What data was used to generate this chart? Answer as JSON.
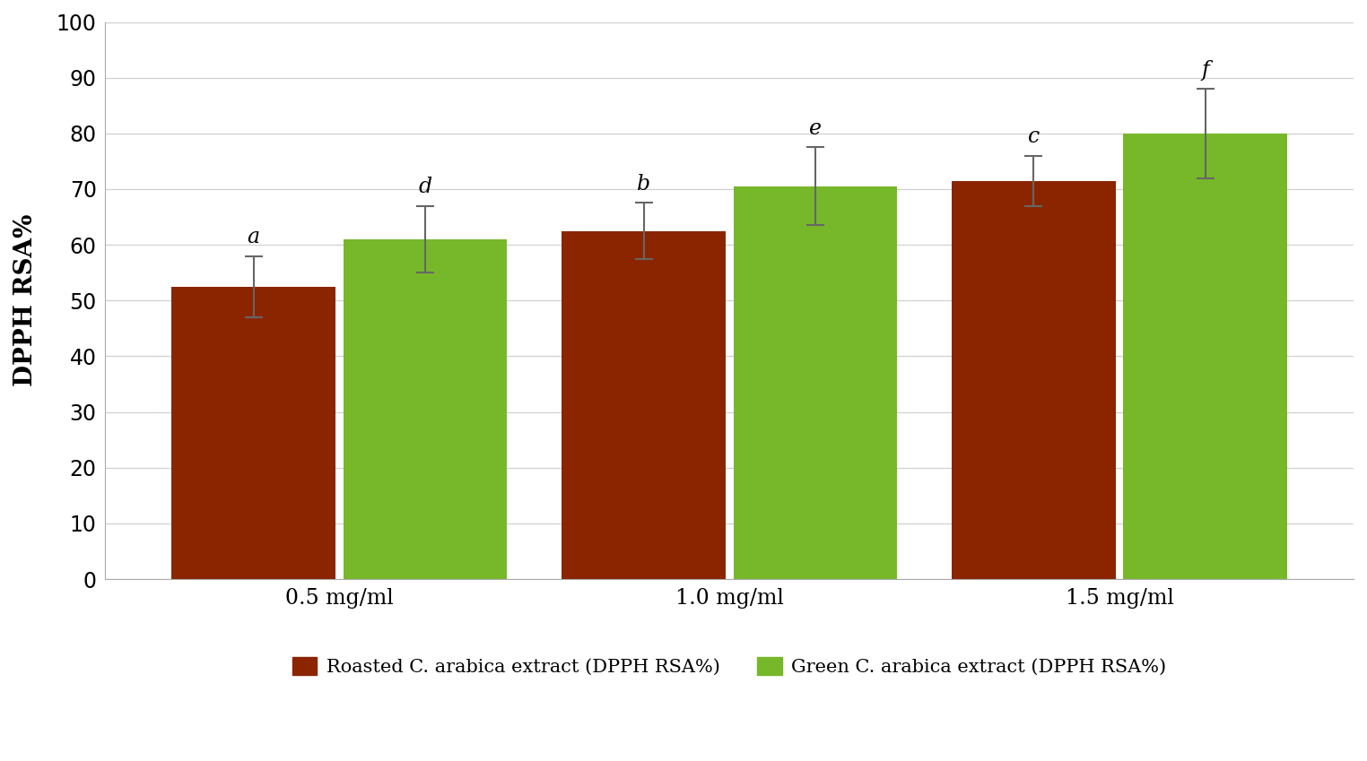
{
  "groups": [
    "0.5 mg/ml",
    "1.0 mg/ml",
    "1.5 mg/ml"
  ],
  "roasted_values": [
    52.5,
    62.5,
    71.5
  ],
  "green_values": [
    61.0,
    70.5,
    80.0
  ],
  "roasted_errors": [
    5.5,
    5.0,
    4.5
  ],
  "green_errors": [
    6.0,
    7.0,
    8.0
  ],
  "roasted_color": "#8B2500",
  "green_color": "#76B82A",
  "roasted_label": "Roasted C. arabica extract (DPPH RSA%)",
  "green_label": "Green C. arabica extract (DPPH RSA%)",
  "ylabel": "DPPH RSA%",
  "ylim": [
    0,
    100
  ],
  "yticks": [
    0,
    10,
    20,
    30,
    40,
    50,
    60,
    70,
    80,
    90,
    100
  ],
  "bar_letters_roasted": [
    "a",
    "b",
    "c"
  ],
  "bar_letters_green": [
    "d",
    "e",
    "f"
  ],
  "background_color": "#ffffff",
  "grid_color": "#d0d0d0",
  "bar_width": 0.42,
  "group_positions": [
    0,
    1,
    2
  ]
}
